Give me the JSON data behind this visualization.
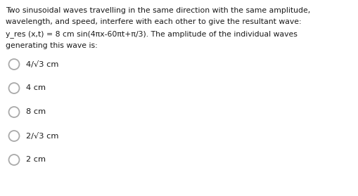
{
  "background_color": "#ffffff",
  "question_lines": [
    "Two sinusoidal waves travelling in the same direction with the same amplitude,",
    "wavelength, and speed, interfere with each other to give the resultant wave:",
    "y_res (x,t) = 8 cm sin(4πx-60πt+π/3). The amplitude of the individual waves",
    "generating this wave is:"
  ],
  "options": [
    "4/√3 cm",
    "4 cm",
    "8 cm",
    "2/√3 cm",
    "2 cm"
  ],
  "text_color": "#1a1a1a",
  "circle_color": "#aaaaaa",
  "font_size_question": 7.8,
  "font_size_options": 8.2,
  "fig_width": 5.1,
  "fig_height": 2.79,
  "dpi": 100
}
